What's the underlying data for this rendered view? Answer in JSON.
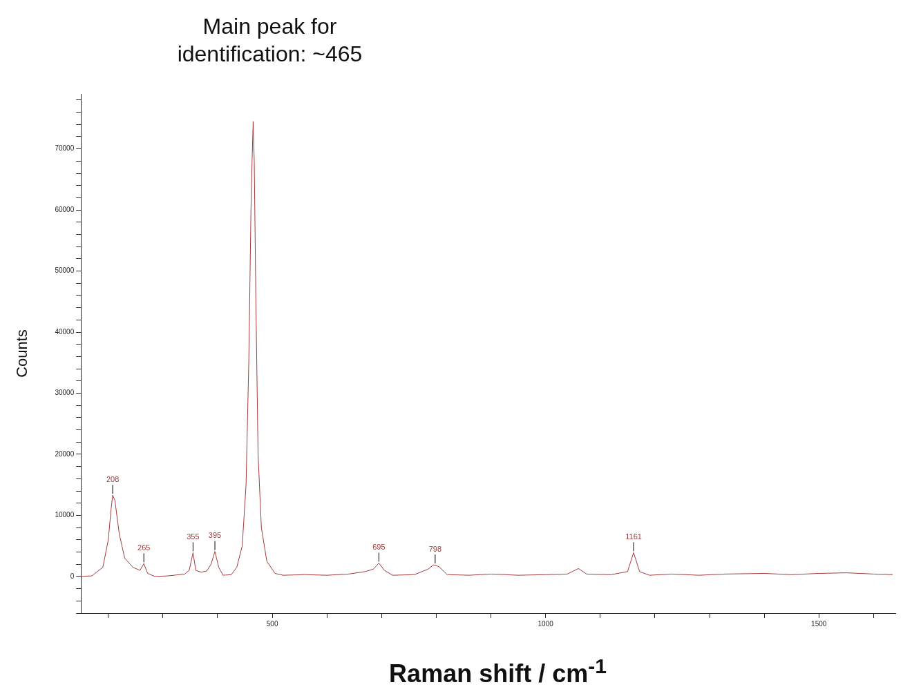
{
  "chart_data": {
    "type": "line",
    "title": "Main peak for identification: ~465",
    "xlabel": "Raman shift / cm$^{-1}$",
    "ylabel": "Counts",
    "grid": false,
    "legend": false,
    "marker": "none",
    "line_style": "solid",
    "xlim": [
      150,
      1640
    ],
    "ylim": [
      -6000,
      79000
    ],
    "xticks": [
      {
        "value": 200,
        "label": null
      },
      {
        "value": 300,
        "label": null
      },
      {
        "value": 400,
        "label": null
      },
      500,
      {
        "value": 600,
        "label": null
      },
      {
        "value": 700,
        "label": null
      },
      {
        "value": 800,
        "label": null
      },
      {
        "value": 900,
        "label": null
      },
      1000,
      {
        "value": 1100,
        "label": null
      },
      {
        "value": 1200,
        "label": null
      },
      {
        "value": 1300,
        "label": null
      },
      {
        "value": 1400,
        "label": null
      },
      1500,
      {
        "value": 1600,
        "label": null
      }
    ],
    "yticks": [
      {
        "value": -6000,
        "label": null
      },
      {
        "value": -4000,
        "label": null
      },
      {
        "value": -2000,
        "label": null
      },
      0,
      {
        "value": 2000,
        "label": null
      },
      {
        "value": 4000,
        "label": null
      },
      {
        "value": 6000,
        "label": null
      },
      {
        "value": 8000,
        "label": null
      },
      10000,
      {
        "value": 12000,
        "label": null
      },
      {
        "value": 14000,
        "label": null
      },
      {
        "value": 16000,
        "label": null
      },
      {
        "value": 18000,
        "label": null
      },
      20000,
      {
        "value": 22000,
        "label": null
      },
      {
        "value": 24000,
        "label": null
      },
      {
        "value": 26000,
        "label": null
      },
      {
        "value": 28000,
        "label": null
      },
      30000,
      {
        "value": 32000,
        "label": null
      },
      {
        "value": 34000,
        "label": null
      },
      {
        "value": 36000,
        "label": null
      },
      {
        "value": 38000,
        "label": null
      },
      40000,
      {
        "value": 42000,
        "label": null
      },
      {
        "value": 44000,
        "label": null
      },
      {
        "value": 46000,
        "label": null
      },
      {
        "value": 48000,
        "label": null
      },
      50000,
      {
        "value": 52000,
        "label": null
      },
      {
        "value": 54000,
        "label": null
      },
      {
        "value": 56000,
        "label": null
      },
      {
        "value": 58000,
        "label": null
      },
      60000,
      {
        "value": 62000,
        "label": null
      },
      {
        "value": 64000,
        "label": null
      },
      {
        "value": 66000,
        "label": null
      },
      {
        "value": 68000,
        "label": null
      },
      70000,
      {
        "value": 72000,
        "label": null
      },
      {
        "value": 74000,
        "label": null
      },
      {
        "value": 76000,
        "label": null
      },
      {
        "value": 78000,
        "label": null
      }
    ],
    "series": [
      {
        "color": "#a33a3a",
        "x": [
          150,
          170,
          190,
          200,
          205,
          208,
          212,
          220,
          230,
          245,
          258,
          265,
          272,
          285,
          310,
          340,
          348,
          355,
          360,
          370,
          380,
          388,
          395,
          402,
          410,
          425,
          435,
          445,
          452,
          457,
          461,
          463,
          465,
          467,
          470,
          474,
          480,
          490,
          505,
          520,
          560,
          600,
          640,
          670,
          685,
          695,
          705,
          720,
          760,
          785,
          795,
          805,
          820,
          860,
          900,
          950,
          1000,
          1040,
          1060,
          1075,
          1120,
          1150,
          1161,
          1172,
          1190,
          1230,
          1280,
          1330,
          1400,
          1450,
          1500,
          1550,
          1600,
          1635
        ],
        "values": [
          0,
          100,
          1500,
          6000,
          11000,
          13300,
          12500,
          7000,
          3000,
          1500,
          1000,
          2100,
          500,
          0,
          100,
          400,
          1000,
          3900,
          1000,
          700,
          900,
          2000,
          4100,
          1500,
          200,
          300,
          1500,
          5000,
          15000,
          35000,
          60000,
          68000,
          74500,
          68000,
          45000,
          20000,
          8000,
          2500,
          500,
          200,
          300,
          200,
          400,
          800,
          1200,
          2200,
          1000,
          200,
          300,
          1200,
          1900,
          1600,
          300,
          200,
          400,
          200,
          300,
          400,
          1300,
          400,
          300,
          800,
          3900,
          800,
          200,
          400,
          200,
          400,
          500,
          300,
          500,
          600,
          400,
          300
        ]
      }
    ],
    "annotations": [
      {
        "text": "208",
        "x": 208,
        "y": 13300
      },
      {
        "text": "265",
        "x": 265,
        "y": 2100
      },
      {
        "text": "355",
        "x": 355,
        "y": 3900
      },
      {
        "text": "395",
        "x": 395,
        "y": 4100
      },
      {
        "text": "695",
        "x": 695,
        "y": 2200
      },
      {
        "text": "798",
        "x": 798,
        "y": 1900
      },
      {
        "text": "1161",
        "x": 1161,
        "y": 3900
      }
    ]
  }
}
